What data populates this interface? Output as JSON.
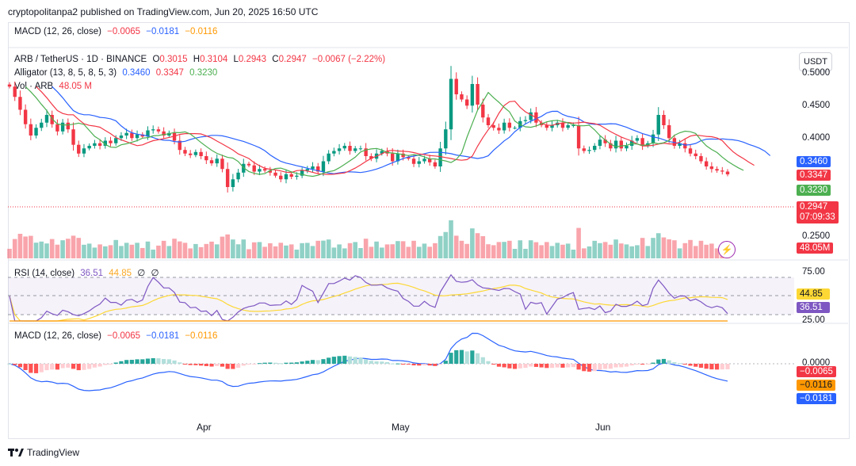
{
  "header": {
    "publisher_line": "cryptopolitanpa2 published on TradingView.com, Jun 20, 2025 16:50 UTC"
  },
  "top_macd_legend": {
    "name": "MACD (12, 26, close)",
    "v1": "−0.0065",
    "v2": "−0.0181",
    "v3": "−0.0116"
  },
  "main_legend": {
    "symbol": "ARB / TetherUS · 1D · BINANCE",
    "o_label": "O",
    "o": "0.3015",
    "h_label": "H",
    "h": "0.3104",
    "l_label": "L",
    "l": "0.2943",
    "c_label": "C",
    "c": "0.2947",
    "chg": "−0.0067 (−2.22%)",
    "alligator_name": "Alligator (13, 8, 5, 8, 5, 3)",
    "al_jaw": "0.3460",
    "al_teeth": "0.3347",
    "al_lips": "0.3230",
    "vol_name": "Vol · ARB",
    "vol_value": "48.05 M"
  },
  "currency_button": "USDT",
  "price_axis": [
    "0.5000",
    "0.4500",
    "0.4000",
    "0.2500"
  ],
  "price_badges": {
    "jaw": "0.3460",
    "teeth": "0.3347",
    "lips": "0.3230",
    "close": "0.2947",
    "countdown": "07:09:33",
    "volume": "48.05M"
  },
  "rsi_legend": {
    "name": "RSI (14, close)",
    "rsi": "36.51",
    "ma": "44.85",
    "n1": "∅",
    "n2": "∅"
  },
  "rsi_axis": [
    "75.00",
    "25.00"
  ],
  "rsi_badges": {
    "ma": "44.85",
    "rsi": "36.51"
  },
  "macd_legend": {
    "name": "MACD (12, 26, close)",
    "v1": "−0.0065",
    "v2": "−0.0181",
    "v3": "−0.0116"
  },
  "macd_axis": [
    "0.0000"
  ],
  "macd_badges": {
    "hist": "−0.0065",
    "signal": "−0.0116",
    "macd": "−0.0181"
  },
  "x_axis": [
    "Apr",
    "May",
    "Jun"
  ],
  "footer": {
    "brand": "TradingView"
  },
  "colors": {
    "up": "#089981",
    "down": "#f23645",
    "jaw": "#2962ff",
    "teeth": "#f23645",
    "lips": "#4caf50",
    "rsi": "#7e57c2",
    "rsi_ma": "#fdd835",
    "macd": "#2962ff",
    "signal": "#ff9800"
  },
  "chart_data": {
    "type": "candlestick",
    "title": "ARB / TetherUS · 1D · BINANCE",
    "ylim": [
      0.23,
      0.51
    ],
    "x_labels": [
      "Apr",
      "May",
      "Jun"
    ],
    "closes": [
      0.465,
      0.445,
      0.42,
      0.392,
      0.37,
      0.385,
      0.395,
      0.41,
      0.392,
      0.378,
      0.395,
      0.382,
      0.352,
      0.335,
      0.345,
      0.35,
      0.355,
      0.35,
      0.36,
      0.355,
      0.365,
      0.37,
      0.375,
      0.365,
      0.372,
      0.368,
      0.38,
      0.382,
      0.378,
      0.37,
      0.375,
      0.36,
      0.342,
      0.335,
      0.332,
      0.338,
      0.33,
      0.322,
      0.316,
      0.325,
      0.305,
      0.27,
      0.285,
      0.298,
      0.315,
      0.312,
      0.3,
      0.305,
      0.302,
      0.298,
      0.292,
      0.285,
      0.295,
      0.29,
      0.292,
      0.302,
      0.305,
      0.31,
      0.3,
      0.32,
      0.335,
      0.34,
      0.345,
      0.35,
      0.34,
      0.345,
      0.345,
      0.33,
      0.325,
      0.335,
      0.34,
      0.335,
      0.32,
      0.335,
      0.328,
      0.325,
      0.315,
      0.32,
      0.325,
      0.318,
      0.31,
      0.345,
      0.382,
      0.48,
      0.45,
      0.44,
      0.428,
      0.47,
      0.43,
      0.405,
      0.39,
      0.385,
      0.38,
      0.395,
      0.385,
      0.385,
      0.398,
      0.4,
      0.415,
      0.395,
      0.39,
      0.385,
      0.39,
      0.395,
      0.385,
      0.39,
      0.39,
      0.345,
      0.34,
      0.342,
      0.35,
      0.362,
      0.355,
      0.345,
      0.36,
      0.345,
      0.35,
      0.36,
      0.365,
      0.35,
      0.355,
      0.372,
      0.41,
      0.39,
      0.365,
      0.35,
      0.355,
      0.345,
      0.335,
      0.33,
      0.32,
      0.31,
      0.305,
      0.302,
      0.3,
      0.2947
    ],
    "series": [
      {
        "name": "Alligator Jaw",
        "last": 0.346
      },
      {
        "name": "Alligator Teeth",
        "last": 0.3347
      },
      {
        "name": "Alligator Lips",
        "last": 0.323
      }
    ],
    "rsi_ylim": [
      10,
      90
    ],
    "rsi_last": 36.51,
    "rsi_ma_last": 44.85,
    "macd_last": {
      "histogram": -0.0065,
      "macd": -0.0181,
      "signal": -0.0116
    }
  }
}
